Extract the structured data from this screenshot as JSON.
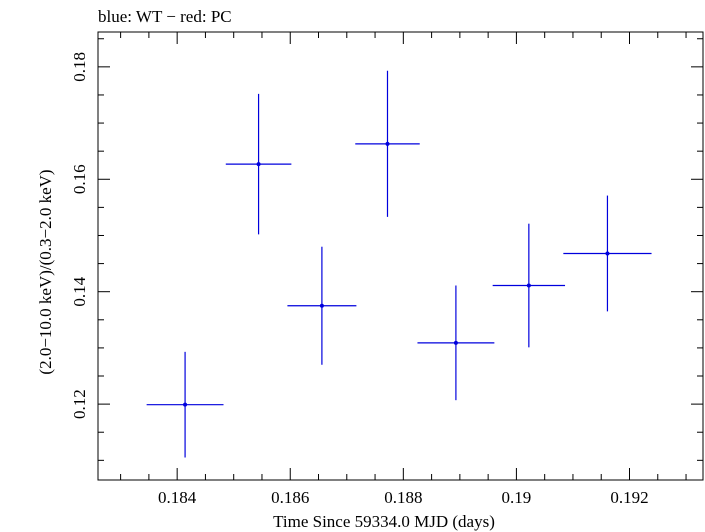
{
  "chart_data": {
    "type": "scatter",
    "title": "blue: WT − red: PC",
    "xlabel": "Time Since 59334.0 MJD (days)",
    "ylabel": "(2.0−10.0 keV)/(0.3−2.0 keV)",
    "xlim": [
      0.1826,
      0.1933
    ],
    "ylim": [
      0.1065,
      0.1862
    ],
    "xticks": [
      0.184,
      0.186,
      0.188,
      0.19,
      0.192
    ],
    "xtick_labels": [
      "0.184",
      "0.186",
      "0.188",
      "0.19",
      "0.192"
    ],
    "yticks": [
      0.12,
      0.14,
      0.16,
      0.18
    ],
    "ytick_labels": [
      "0.12",
      "0.14",
      "0.16",
      "0.18"
    ],
    "grid": false,
    "series": [
      {
        "color": "#0000dd",
        "points": [
          {
            "x": 0.18414,
            "y": 0.1199,
            "xerr": 0.00068,
            "yerr": 0.0094
          },
          {
            "x": 0.18544,
            "y": 0.1627,
            "xerr": 0.00058,
            "yerr": 0.0125
          },
          {
            "x": 0.18656,
            "y": 0.1375,
            "xerr": 0.00061,
            "yerr": 0.0105
          },
          {
            "x": 0.18772,
            "y": 0.1663,
            "xerr": 0.00057,
            "yerr": 0.013
          },
          {
            "x": 0.18893,
            "y": 0.1309,
            "xerr": 0.00068,
            "yerr": 0.0102
          },
          {
            "x": 0.19022,
            "y": 0.1411,
            "xerr": 0.00064,
            "yerr": 0.011
          },
          {
            "x": 0.19161,
            "y": 0.1468,
            "xerr": 0.00078,
            "yerr": 0.0103
          }
        ]
      }
    ]
  }
}
